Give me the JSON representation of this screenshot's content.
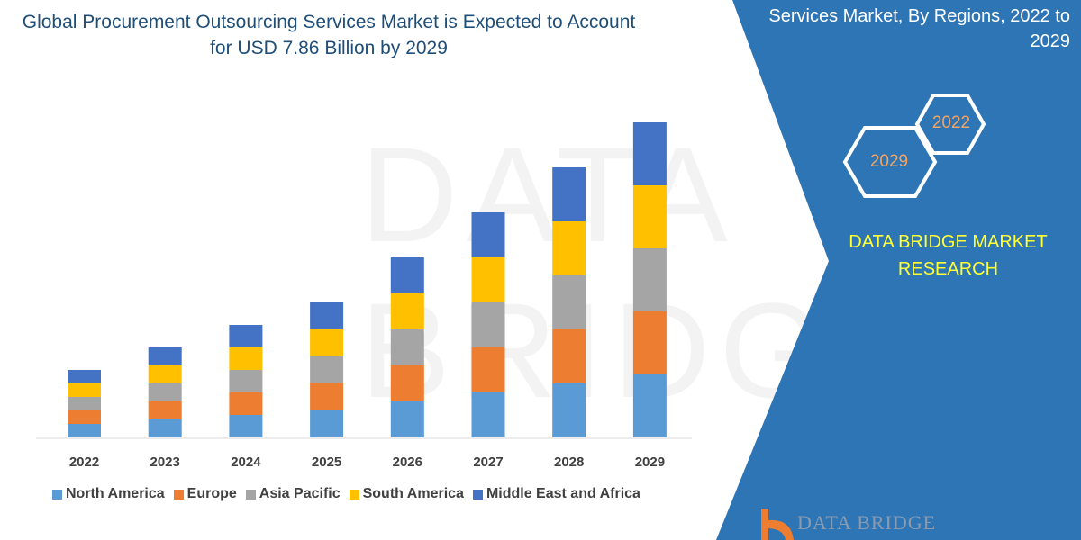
{
  "title": "Global Procurement Outsourcing Services Market is Expected to Account for USD 7.86 Billion by 2029",
  "side_title": "Services  Market, By Regions, 2022 to 2029",
  "hexagons": [
    "2022",
    "2029"
  ],
  "brand": "DATA BRIDGE MARKET RESEARCH",
  "logo_text": "DATA BRIDGE",
  "watermark": "DATA BRIDGE",
  "colors": {
    "panel": "#2e75b6",
    "north_america": "#5b9bd5",
    "europe": "#ed7d31",
    "asia_pacific": "#a5a5a5",
    "south_america": "#ffc000",
    "mea": "#4472c4",
    "brand_text": "#ffff33"
  },
  "chart_data": {
    "type": "bar",
    "stacked": true,
    "categories": [
      "2022",
      "2023",
      "2024",
      "2025",
      "2026",
      "2027",
      "2028",
      "2029"
    ],
    "series": [
      {
        "name": "North America",
        "color": "#5b9bd5",
        "values": [
          15,
          20,
          25,
          30,
          40,
          50,
          60,
          70
        ]
      },
      {
        "name": "Europe",
        "color": "#ed7d31",
        "values": [
          15,
          20,
          25,
          30,
          40,
          50,
          60,
          70
        ]
      },
      {
        "name": "Asia Pacific",
        "color": "#a5a5a5",
        "values": [
          15,
          20,
          25,
          30,
          40,
          50,
          60,
          70
        ]
      },
      {
        "name": "South America",
        "color": "#ffc000",
        "values": [
          15,
          20,
          25,
          30,
          40,
          50,
          60,
          70
        ]
      },
      {
        "name": "Middle East and Africa",
        "color": "#4472c4",
        "values": [
          15,
          20,
          25,
          30,
          40,
          50,
          60,
          70
        ]
      }
    ],
    "yaxis_visible": false,
    "grid": false,
    "legend_position": "bottom"
  }
}
